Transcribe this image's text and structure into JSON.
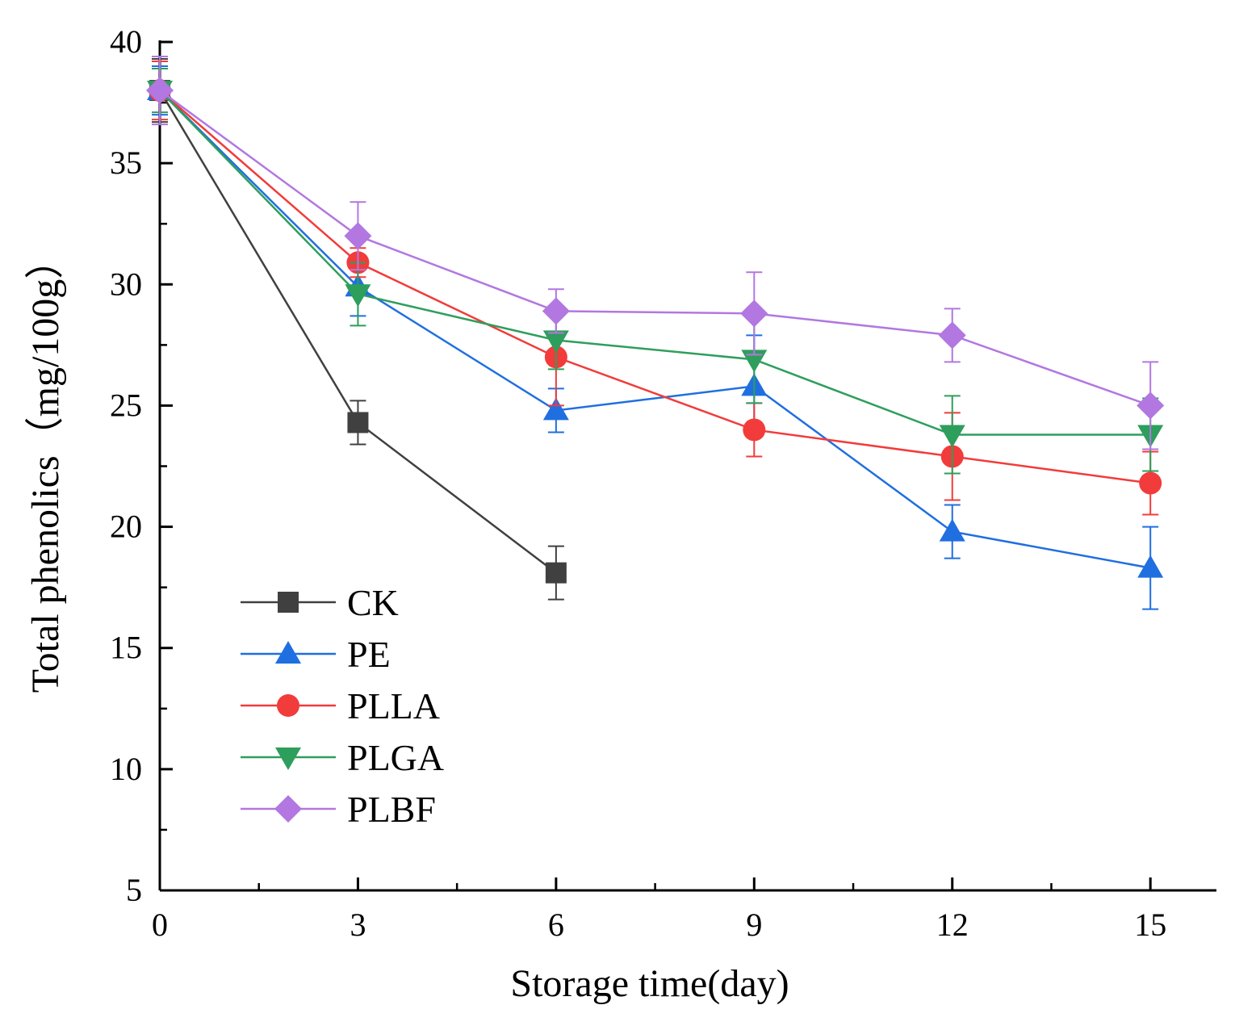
{
  "chart_data": {
    "type": "line",
    "title": "",
    "xlabel": "Storage time(day)",
    "ylabel": "Total phenolics（mg/100g）",
    "xlim": [
      0,
      16
    ],
    "ylim": [
      5,
      40
    ],
    "x_ticks": [
      0,
      3,
      6,
      9,
      12,
      15
    ],
    "x_tick_labels": [
      "0",
      "3",
      "6",
      "9",
      "12",
      "15"
    ],
    "x_minor_ticks": [
      1.5,
      4.5,
      7.5,
      10.5,
      13.5
    ],
    "y_ticks": [
      5,
      10,
      15,
      20,
      25,
      30,
      35,
      40
    ],
    "y_tick_labels": [
      "5",
      "10",
      "15",
      "20",
      "25",
      "30",
      "35",
      "40"
    ],
    "y_minor_ticks": [
      7.5,
      12.5,
      17.5,
      22.5,
      27.5,
      32.5,
      37.5
    ],
    "grid": false,
    "legend_position": "lower-left",
    "series": [
      {
        "name": "CK",
        "color": "#404040",
        "marker": "square",
        "x": [
          0,
          3,
          6
        ],
        "y": [
          38.0,
          24.3,
          18.1
        ],
        "err": [
          1.3,
          0.9,
          1.1
        ]
      },
      {
        "name": "PE",
        "color": "#1f6fe0",
        "marker": "triangle-up",
        "x": [
          0,
          3,
          6,
          9,
          12,
          15
        ],
        "y": [
          38.0,
          29.9,
          24.8,
          25.8,
          19.8,
          18.3
        ],
        "err": [
          1.0,
          1.2,
          0.9,
          2.1,
          1.1,
          1.7
        ]
      },
      {
        "name": "PLLA",
        "color": "#f23b3b",
        "marker": "circle",
        "x": [
          0,
          3,
          6,
          9,
          12,
          15
        ],
        "y": [
          38.0,
          30.9,
          27.0,
          24.0,
          22.9,
          21.8
        ],
        "err": [
          1.2,
          0.6,
          2.0,
          1.1,
          1.8,
          1.3
        ]
      },
      {
        "name": "PLGA",
        "color": "#2e9e5c",
        "marker": "triangle-down",
        "x": [
          0,
          3,
          6,
          9,
          12,
          15
        ],
        "y": [
          38.0,
          29.6,
          27.7,
          26.9,
          23.8,
          23.8
        ],
        "err": [
          0.9,
          1.3,
          1.2,
          1.8,
          1.6,
          1.5
        ]
      },
      {
        "name": "PLBF",
        "color": "#b277e0",
        "marker": "diamond",
        "x": [
          0,
          3,
          6,
          9,
          12,
          15
        ],
        "y": [
          38.0,
          32.0,
          28.9,
          28.8,
          27.9,
          25.0
        ],
        "err": [
          1.4,
          1.4,
          0.9,
          1.7,
          1.1,
          1.8
        ]
      }
    ]
  }
}
